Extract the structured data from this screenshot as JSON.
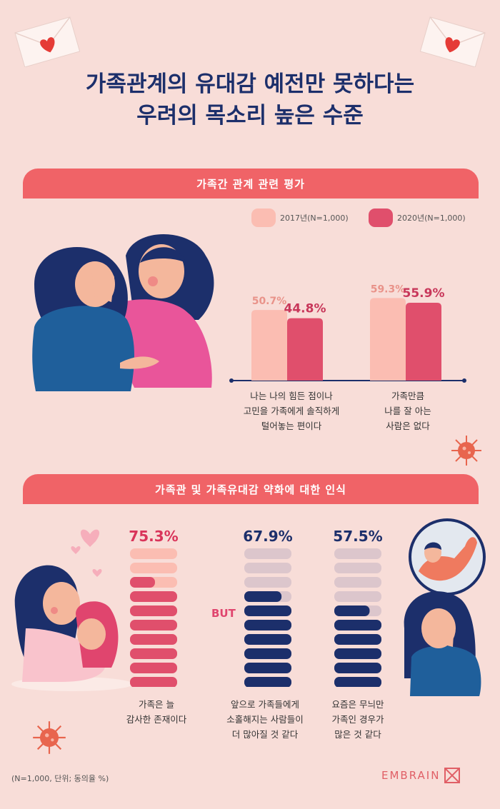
{
  "title": {
    "line1": "가족관계의 유대감 예전만 못하다는",
    "line2": "우려의 목소리 높은 수준"
  },
  "section1": {
    "heading": "가족간 관계 관련 평가",
    "legend": [
      {
        "label": "2017년(N=1,000)",
        "color": "#fbbdb2"
      },
      {
        "label": "2020년(N=1,000)",
        "color": "#e04f6c"
      }
    ]
  },
  "section2": {
    "heading": "가족관 및 가족유대감 약화에 대한 인식",
    "but": "BUT"
  },
  "footnote": "(N=1,000, 단위; 동의율 %)",
  "logo": "EMBRAIN",
  "colors": {
    "bg": "#f8ddd8",
    "navy": "#1c2f6b",
    "coral": "#f06367",
    "pink": "#e04f6c",
    "lightpink": "#fbbdb2"
  },
  "chart_data": [
    {
      "type": "bar",
      "title": "가족간 관계 관련 평가",
      "categories": [
        "나는 나의 힘든 점이나 고민을 가족에게 솔직하게 털어놓는 편이다",
        "가족만큼 나를 잘 아는 사람은 없다"
      ],
      "category_lines": [
        [
          "나는 나의 힘든 점이나",
          "고민을 가족에게 솔직하게",
          "털어놓는 편이다"
        ],
        [
          "가족만큼",
          "나를 잘 아는",
          "사람은 없다"
        ]
      ],
      "series": [
        {
          "name": "2017년(N=1,000)",
          "values": [
            50.7,
            59.3
          ]
        },
        {
          "name": "2020년(N=1,000)",
          "values": [
            44.8,
            55.9
          ]
        }
      ],
      "value_labels": [
        [
          "50.7%",
          "44.8%"
        ],
        [
          "59.3%",
          "55.9%"
        ]
      ],
      "ylim": [
        0,
        100
      ]
    },
    {
      "type": "bar",
      "title": "가족관 및 가족유대감 약화에 대한 인식",
      "categories": [
        "가족은 늘 감사한 존재이다",
        "앞으로 가족들에게 소홀해지는 사람들이 더 많아질 것 같다",
        "요즘은 무늬만 가족인 경우가 많은 것 같다"
      ],
      "category_lines": [
        [
          "가족은 늘",
          "감사한 존재이다"
        ],
        [
          "앞으로 가족들에게",
          "소홀해지는 사람들이",
          "더 많아질 것 같다"
        ],
        [
          "요즘은 무늬만",
          "가족인 경우가",
          "많은 것 같다"
        ]
      ],
      "values": [
        75.3,
        67.9,
        57.5
      ],
      "value_labels": [
        "75.3%",
        "67.9%",
        "57.5%"
      ],
      "ylim": [
        0,
        100
      ]
    }
  ]
}
